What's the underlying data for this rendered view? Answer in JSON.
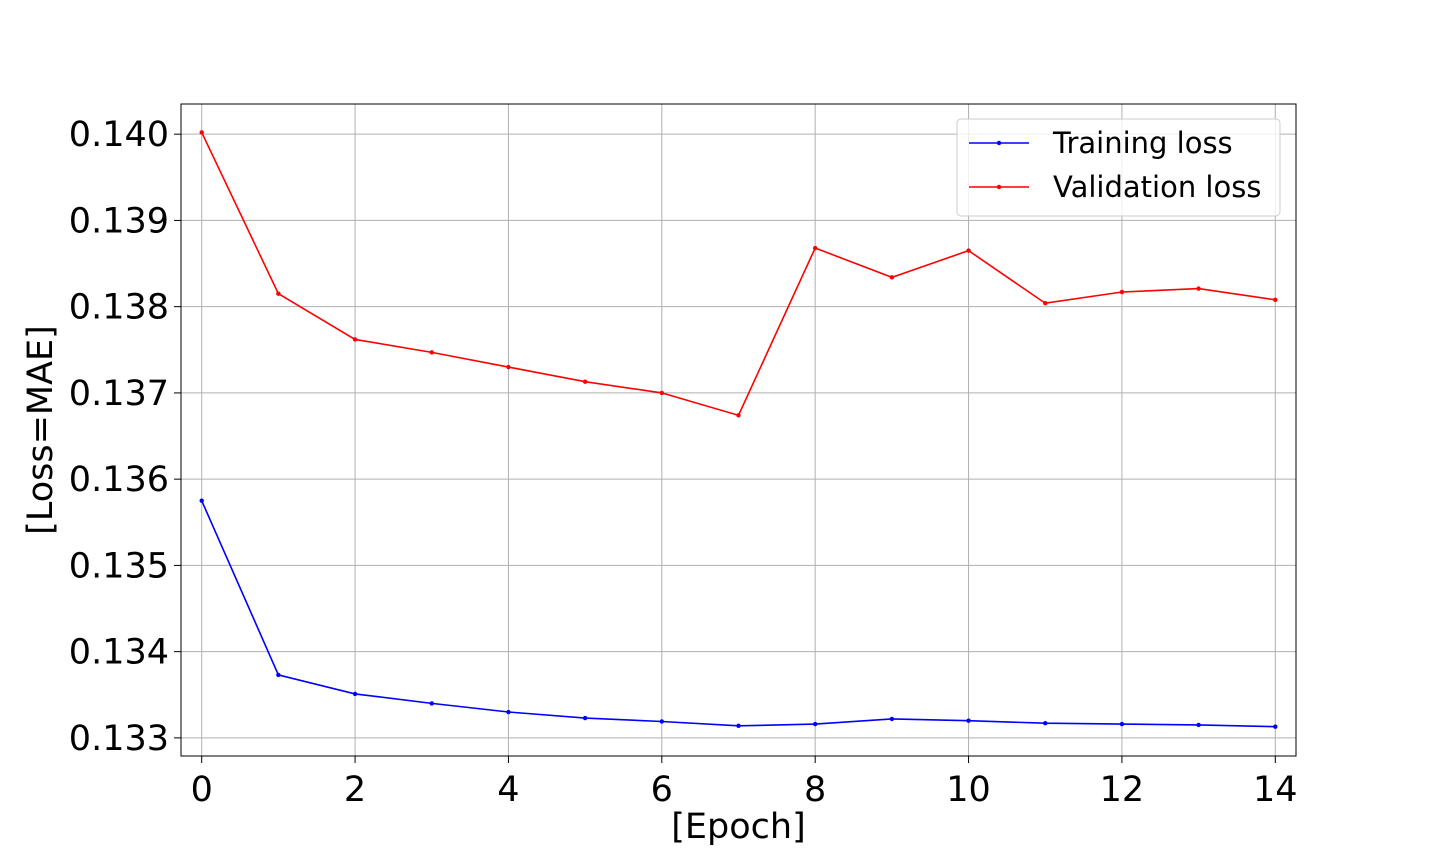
{
  "chart_data": {
    "type": "line",
    "title": "",
    "xlabel": "[Epoch]",
    "ylabel": "[Loss=MAE]",
    "xlim": [
      -0.27,
      14.27
    ],
    "ylim": [
      0.13279,
      0.14035
    ],
    "xticks": [
      0,
      2,
      4,
      6,
      8,
      10,
      12,
      14
    ],
    "xtick_labels": [
      "0",
      "2",
      "4",
      "6",
      "8",
      "10",
      "12",
      "14"
    ],
    "yticks": [
      0.133,
      0.134,
      0.135,
      0.136,
      0.137,
      0.138,
      0.139,
      0.14
    ],
    "ytick_labels": [
      "0.133",
      "0.134",
      "0.135",
      "0.136",
      "0.137",
      "0.138",
      "0.139",
      "0.140"
    ],
    "grid": true,
    "legend_position": "top-right",
    "x": [
      0,
      1,
      2,
      3,
      4,
      5,
      6,
      7,
      8,
      9,
      10,
      11,
      12,
      13,
      14
    ],
    "series": [
      {
        "name": "Training loss",
        "color": "#0000ff",
        "values": [
          0.13575,
          0.13373,
          0.13351,
          0.1334,
          0.1333,
          0.13323,
          0.13319,
          0.13314,
          0.13316,
          0.13322,
          0.1332,
          0.13317,
          0.13316,
          0.13315,
          0.13313
        ]
      },
      {
        "name": "Validation loss",
        "color": "#ff0000",
        "values": [
          0.14002,
          0.13815,
          0.13762,
          0.13747,
          0.1373,
          0.13713,
          0.137,
          0.13674,
          0.13868,
          0.13834,
          0.13865,
          0.13804,
          0.13817,
          0.13821,
          0.13808
        ]
      }
    ]
  }
}
